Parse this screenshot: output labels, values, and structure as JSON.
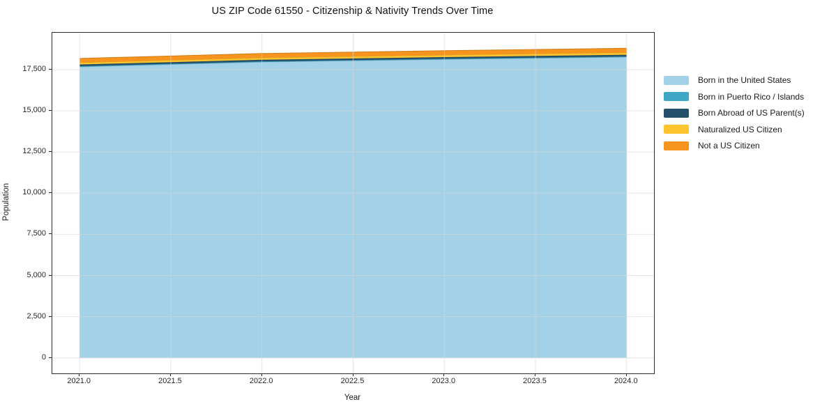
{
  "title": "US ZIP Code 61550 - Citizenship & Nativity Trends Over Time",
  "chart_data": {
    "type": "area",
    "stacked": true,
    "title": "US ZIP Code 61550 - Citizenship & Nativity Trends Over Time",
    "xlabel": "Year",
    "ylabel": "Population",
    "x": [
      2021,
      2022,
      2023,
      2024
    ],
    "series": [
      {
        "name": "Born in the United States",
        "color": "#A3D2E8",
        "values": [
          17670,
          17960,
          18120,
          18260
        ]
      },
      {
        "name": "Born in Puerto Rico / Islands",
        "color": "#3FA7C6",
        "values": [
          40,
          40,
          40,
          40
        ]
      },
      {
        "name": "Born Abroad of US Parent(s)",
        "color": "#25506B",
        "values": [
          100,
          100,
          100,
          100
        ]
      },
      {
        "name": "Naturalized US Citizen",
        "color": "#FDC42F",
        "values": [
          120,
          125,
          130,
          135
        ]
      },
      {
        "name": "Not a US Citizen",
        "color": "#F7941E",
        "values": [
          250,
          255,
          260,
          265
        ]
      }
    ],
    "x_ticks": [
      "2021.0",
      "2021.5",
      "2022.0",
      "2022.5",
      "2023.0",
      "2023.5",
      "2024.0"
    ],
    "x_tick_values": [
      2021,
      2021.5,
      2022,
      2022.5,
      2023,
      2023.5,
      2024
    ],
    "y_ticks": [
      "0",
      "2,500",
      "5,000",
      "7,500",
      "10,000",
      "12,500",
      "15,000",
      "17,500"
    ],
    "y_tick_values": [
      0,
      2500,
      5000,
      7500,
      10000,
      12500,
      15000,
      17500
    ],
    "xlim": [
      2020.85,
      2024.15
    ],
    "ylim": [
      -940,
      19740
    ],
    "grid": true,
    "legend_position": "right",
    "grid_color": "#e4e4e4",
    "frame_color": "#2b2b2b"
  }
}
